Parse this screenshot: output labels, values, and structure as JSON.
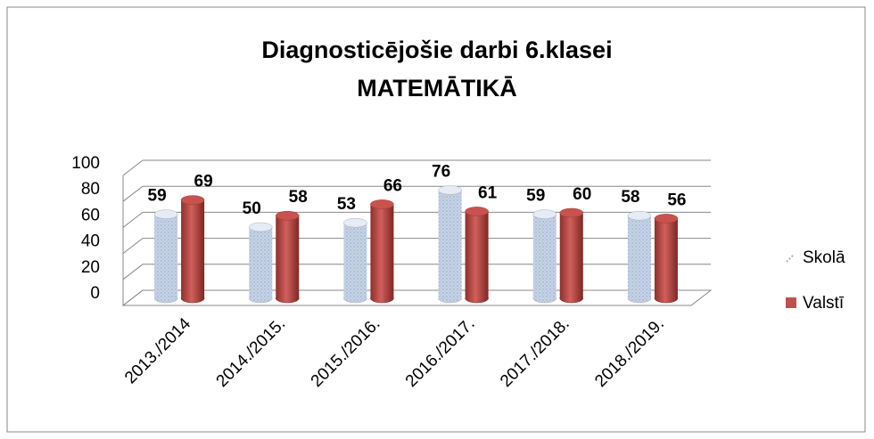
{
  "chart_data": {
    "type": "bar3d",
    "title": [
      "Diagnosticējošie darbi 6.klasei",
      "MATEMĀTIKĀ"
    ],
    "categories": [
      "2013./2014",
      "2014./2015.",
      "2015./2016.",
      "2016./2017.",
      "2017./2018.",
      "2018./2019."
    ],
    "series": [
      {
        "name": "Skolā",
        "color": "#c6d3e6",
        "values": [
          59,
          50,
          53,
          76,
          59,
          58
        ]
      },
      {
        "name": "Valstī",
        "color": "#c0504d",
        "values": [
          69,
          58,
          66,
          61,
          60,
          56
        ]
      }
    ],
    "ylim": [
      0,
      100
    ],
    "yticks": [
      0,
      20,
      40,
      60,
      80,
      100
    ],
    "grid": true,
    "legend": "right"
  }
}
